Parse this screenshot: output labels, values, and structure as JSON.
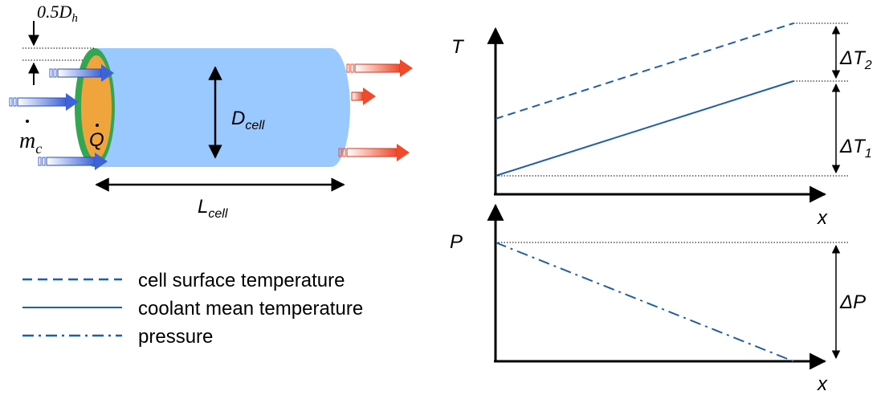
{
  "cell": {
    "hydraulic_label": "0.5D",
    "hydraulic_sub": "h",
    "heat_label": "Q",
    "flow_label": "m",
    "flow_sub": "c",
    "diameter_label": "D",
    "diameter_sub": "cell",
    "length_label": "L",
    "length_sub": "cell",
    "colors": {
      "body": "#99c9ff",
      "ring": "#33a652",
      "core": "#f0a53c",
      "arrow_in": "#3e63d8",
      "arrow_out": "#ee4a2b",
      "dark": "#000000"
    }
  },
  "legend": [
    {
      "style": "dashed",
      "label": "cell surface temperature"
    },
    {
      "style": "solid",
      "label": "coolant mean temperature"
    },
    {
      "style": "dashdot",
      "label": "pressure"
    }
  ],
  "temperature_plot": {
    "y_label": "T",
    "x_label": "x",
    "delta_2_label": "ΔT",
    "delta_2_sub": "2",
    "delta_1_label": "ΔT",
    "delta_1_sub": "1"
  },
  "pressure_plot": {
    "y_label": "P",
    "x_label": "x",
    "delta_label": "ΔP"
  },
  "line_color": "#1f5fa8"
}
